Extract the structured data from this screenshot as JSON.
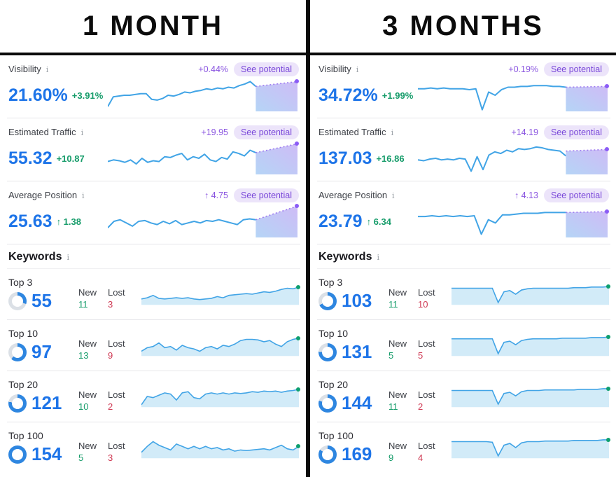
{
  "ui": {
    "see_potential": "See potential",
    "new_label": "New",
    "lost_label": "Lost",
    "info_icon": "i",
    "keywords_title": "Keywords"
  },
  "colors": {
    "value_blue": "#1d74e8",
    "spark_blue": "#41a4e6",
    "area_fill": "#d2ebf8",
    "green": "#169c6a",
    "red": "#cf3a54",
    "purple": "#8a55e0",
    "pill_bg": "#ece4fa",
    "ring_blue": "#2e86e0",
    "ring_track": "#dbe0e6",
    "end_dot_green": "#0e9f6e",
    "end_dot_purple": "#8b5cf6"
  },
  "columns": [
    {
      "title": "1 MONTH",
      "metrics": [
        {
          "label": "Visibility",
          "potential_delta": "+0.44%",
          "value": "21.60%",
          "change": "+3.91%",
          "spark": [
            34,
            22,
            21,
            20,
            20,
            19,
            18,
            18,
            25,
            26,
            24,
            20,
            21,
            19,
            16,
            17,
            15,
            14,
            12,
            13,
            11,
            12,
            10,
            11,
            8,
            6,
            3,
            9
          ],
          "proj": [
            9,
            3
          ]
        },
        {
          "label": "Estimated Traffic",
          "potential_delta": "+19.95",
          "value": "55.32",
          "change": "+10.87",
          "spark": [
            24,
            22,
            23,
            25,
            22,
            27,
            20,
            25,
            23,
            24,
            18,
            19,
            16,
            14,
            22,
            18,
            20,
            15,
            22,
            24,
            19,
            21,
            12,
            14,
            17,
            10,
            13
          ],
          "proj": [
            13,
            2
          ]
        },
        {
          "label": "Average Position",
          "potential_delta": "↑ 4.75",
          "value": "25.63",
          "change": "↑ 1.38",
          "spark": [
            28,
            20,
            18,
            22,
            26,
            20,
            19,
            22,
            24,
            20,
            23,
            19,
            24,
            22,
            20,
            22,
            19,
            20,
            18,
            20,
            22,
            24,
            18,
            17,
            18
          ],
          "proj": [
            18,
            1
          ]
        }
      ],
      "keywords": [
        {
          "label": "Top 3",
          "count": "55",
          "new": "11",
          "lost": "3",
          "ring_pct": 30,
          "spark": [
            28,
            26,
            22,
            27,
            28,
            27,
            26,
            27,
            26,
            28,
            29,
            28,
            27,
            24,
            26,
            22,
            21,
            20,
            19,
            20,
            18,
            16,
            17,
            15,
            12,
            10,
            11,
            8
          ]
        },
        {
          "label": "Top 10",
          "count": "97",
          "new": "13",
          "lost": "9",
          "ring_pct": 62,
          "spark": [
            30,
            24,
            22,
            16,
            24,
            22,
            28,
            20,
            24,
            26,
            30,
            24,
            22,
            26,
            20,
            22,
            18,
            12,
            10,
            10,
            11,
            14,
            12,
            18,
            22,
            14,
            10,
            8
          ]
        },
        {
          "label": "Top 20",
          "count": "121",
          "new": "10",
          "lost": "2",
          "ring_pct": 78,
          "spark": [
            34,
            20,
            22,
            18,
            14,
            16,
            26,
            14,
            12,
            22,
            24,
            16,
            14,
            16,
            14,
            16,
            14,
            15,
            14,
            12,
            13,
            11,
            12,
            11,
            13,
            11,
            10,
            8
          ]
        },
        {
          "label": "Top 100",
          "count": "154",
          "new": "5",
          "lost": "3",
          "ring_pct": 100,
          "spark": [
            28,
            18,
            10,
            16,
            20,
            24,
            14,
            18,
            22,
            18,
            22,
            18,
            22,
            20,
            24,
            22,
            26,
            24,
            25,
            24,
            23,
            22,
            24,
            20,
            16,
            22,
            24,
            18
          ]
        }
      ]
    },
    {
      "title": "3 MONTHS",
      "metrics": [
        {
          "label": "Visibility",
          "potential_delta": "+0.19%",
          "value": "34.72%",
          "change": "+1.99%",
          "spark": [
            12,
            12,
            11,
            12,
            11,
            12,
            12,
            12,
            13,
            12,
            38,
            16,
            20,
            13,
            10,
            10,
            9,
            9,
            8,
            8,
            8,
            9,
            9,
            10
          ],
          "proj": [
            10,
            9
          ]
        },
        {
          "label": "Estimated Traffic",
          "potential_delta": "+14.19",
          "value": "137.03",
          "change": "+16.86",
          "spark": [
            22,
            23,
            21,
            20,
            22,
            21,
            22,
            20,
            21,
            36,
            18,
            34,
            16,
            12,
            14,
            10,
            12,
            8,
            9,
            8,
            6,
            7,
            9,
            10,
            11,
            17
          ],
          "proj": [
            11,
            9
          ]
        },
        {
          "label": "Average Position",
          "potential_delta": "↑ 4.13",
          "value": "23.79",
          "change": "↑ 6.34",
          "spark": [
            14,
            14,
            13,
            14,
            13,
            14,
            13,
            14,
            13,
            36,
            18,
            22,
            12,
            12,
            11,
            10,
            10,
            10,
            9,
            9,
            9,
            9
          ],
          "proj": [
            9,
            8
          ]
        }
      ],
      "keywords": [
        {
          "label": "Top 3",
          "count": "103",
          "new": "11",
          "lost": "10",
          "ring_pct": 68,
          "spark": [
            10,
            10,
            10,
            10,
            10,
            10,
            10,
            10,
            34,
            16,
            14,
            20,
            13,
            11,
            10,
            10,
            10,
            10,
            10,
            10,
            10,
            9,
            9,
            9,
            8,
            8,
            8,
            7
          ]
        },
        {
          "label": "Top 10",
          "count": "131",
          "new": "5",
          "lost": "5",
          "ring_pct": 76,
          "spark": [
            9,
            9,
            9,
            9,
            9,
            9,
            9,
            9,
            34,
            15,
            13,
            19,
            12,
            10,
            9,
            9,
            9,
            9,
            9,
            8,
            8,
            8,
            8,
            8,
            7,
            7,
            7,
            6
          ]
        },
        {
          "label": "Top 20",
          "count": "144",
          "new": "11",
          "lost": "2",
          "ring_pct": 80,
          "spark": [
            10,
            10,
            10,
            10,
            10,
            10,
            10,
            10,
            33,
            15,
            13,
            19,
            12,
            10,
            10,
            10,
            9,
            9,
            9,
            9,
            9,
            9,
            8,
            8,
            8,
            8,
            7,
            7
          ]
        },
        {
          "label": "Top 100",
          "count": "169",
          "new": "9",
          "lost": "4",
          "ring_pct": 84,
          "spark": [
            10,
            10,
            10,
            10,
            10,
            10,
            10,
            11,
            34,
            16,
            13,
            20,
            12,
            10,
            10,
            10,
            9,
            9,
            9,
            9,
            9,
            8,
            8,
            8,
            8,
            8,
            7,
            7
          ]
        }
      ]
    }
  ]
}
